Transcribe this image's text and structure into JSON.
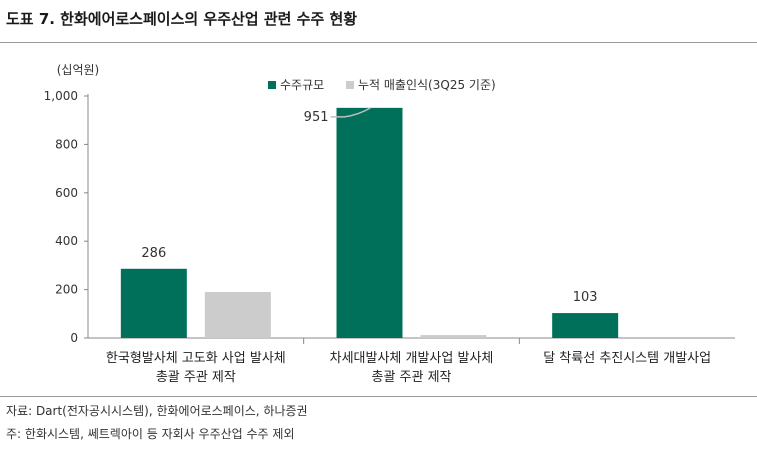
{
  "header": {
    "title": "도표 7. 한화에어로스페이스의 우주산업 관련 수주 현황"
  },
  "footer": {
    "source": "자료: Dart(전자공시시스템), 한화에어로스페이스, 하나증권",
    "note": "주: 한화시스템, 쎄트렉아이 등 자회사 우주산업 수주 제외"
  },
  "colors": {
    "order": "#00705a",
    "cumulative": "#cccccc",
    "axis": "#888888"
  },
  "chart_data": {
    "type": "bar",
    "unit_label": "(십억원)",
    "categories": [
      [
        "한국형발사체 고도화 사업 발사체",
        "총괄 주관 제작"
      ],
      [
        "차세대발사체 개발사업 발사체",
        "총괄 주관 제작"
      ],
      [
        "달 착륙선 추진시스템 개발사업"
      ]
    ],
    "series": [
      {
        "name": "수주규모",
        "values": [
          286,
          951,
          103
        ],
        "labels": [
          "286",
          "951",
          "103"
        ]
      },
      {
        "name": "누적 매출인식(3Q25 기준)",
        "values": [
          190,
          12,
          null
        ]
      }
    ],
    "ylim": [
      0,
      1000
    ],
    "yticks": [
      0,
      200,
      400,
      600,
      800,
      1000
    ],
    "ytick_labels": [
      "0",
      "200",
      "400",
      "600",
      "800",
      "1,000"
    ],
    "legend_position": "top"
  }
}
